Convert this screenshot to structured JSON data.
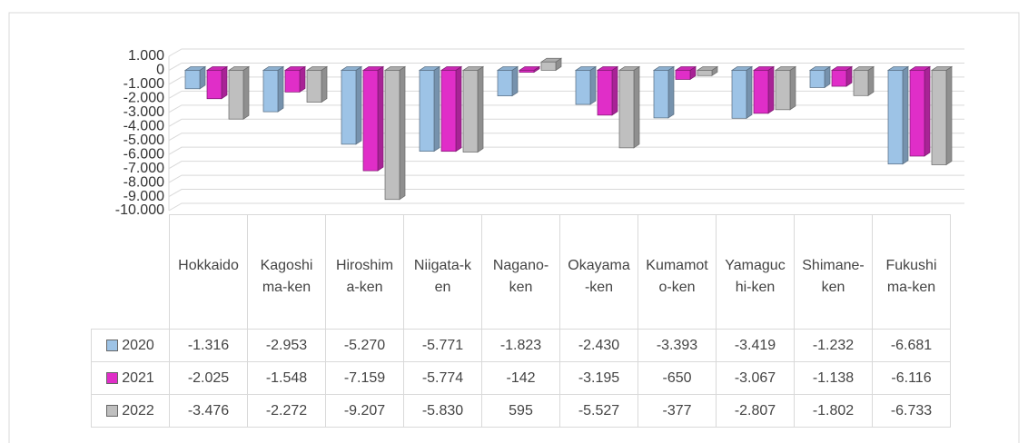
{
  "chart_data": {
    "type": "bar3d",
    "categories": [
      "Hokkaido",
      "Kagoshima-ken",
      "Hiroshima-ken",
      "Niigata-ken",
      "Nagano-ken",
      "Okayama-ken",
      "Kumamoto-ken",
      "Yamaguchi-ken",
      "Shimane-ken",
      "Fukushima-ken"
    ],
    "series": [
      {
        "name": "2020",
        "color": "#9dc3e6",
        "values": [
          -1316,
          -2953,
          -5270,
          -5771,
          -1823,
          -2430,
          -3393,
          -3419,
          -1232,
          -6681
        ],
        "value_labels": [
          "-1.316",
          "-2.953",
          "-5.270",
          "-5.771",
          "-1.823",
          "-2.430",
          "-3.393",
          "-3.419",
          "-1.232",
          "-6.681"
        ]
      },
      {
        "name": "2021",
        "color": "#e02ec8",
        "values": [
          -2025,
          -1548,
          -7159,
          -5774,
          -142,
          -3195,
          -650,
          -3067,
          -1138,
          -6116
        ],
        "value_labels": [
          "-2.025",
          "-1.548",
          "-7.159",
          "-5.774",
          "-142",
          "-3.195",
          "-650",
          "-3.067",
          "-1.138",
          "-6.116"
        ]
      },
      {
        "name": "2022",
        "color": "#bfbfbf",
        "values": [
          -3476,
          -2272,
          -9207,
          -5830,
          595,
          -5527,
          -377,
          -2807,
          -1802,
          -6733
        ],
        "value_labels": [
          "-3.476",
          "-2.272",
          "-9.207",
          "-5.830",
          "595",
          "-5.527",
          "-377",
          "-2.807",
          "-1.802",
          "-6.733"
        ]
      }
    ],
    "ylim": [
      -10000,
      1000
    ],
    "yticks": [
      {
        "value": 1000,
        "label": "1.000"
      },
      0,
      {
        "value": -1000,
        "label": "-1.000"
      },
      {
        "value": -2000,
        "label": "-2.000"
      },
      {
        "value": -3000,
        "label": "-3.000"
      },
      {
        "value": -4000,
        "label": "-4.000"
      },
      {
        "value": -5000,
        "label": "-5.000"
      },
      {
        "value": -6000,
        "label": "-6.000"
      },
      {
        "value": -7000,
        "label": "-7.000"
      },
      {
        "value": -8000,
        "label": "-8.000"
      },
      {
        "value": -9000,
        "label": "-9.000"
      },
      {
        "value": -10000,
        "label": "-10.000"
      }
    ],
    "grid": true
  }
}
